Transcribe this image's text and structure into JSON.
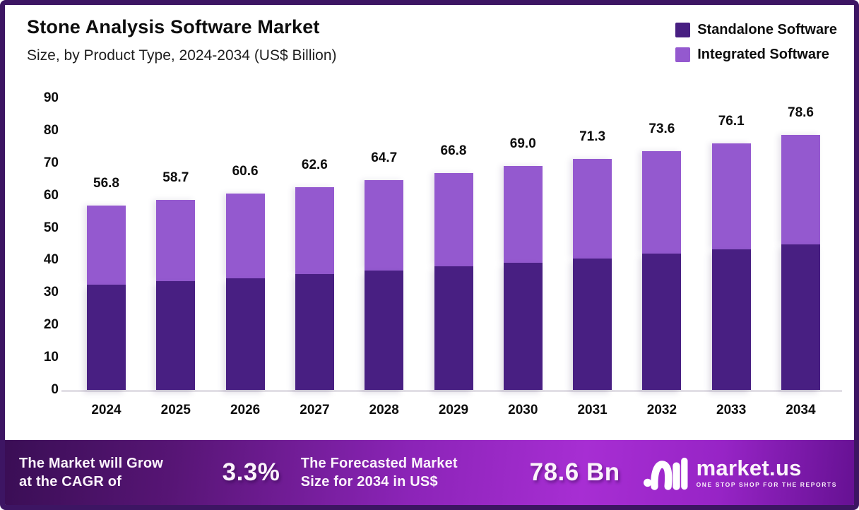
{
  "header": {
    "title": "Stone Analysis Software Market",
    "subtitle": "Size, by Product Type, 2024-2034 (US$ Billion)"
  },
  "legend": [
    {
      "label": "Standalone Software",
      "color": "#481F82"
    },
    {
      "label": "Integrated Software",
      "color": "#9459CF"
    }
  ],
  "chart_data": {
    "type": "bar",
    "stacked": true,
    "title": "Stone Analysis Software Market Size, by Product Type, 2024-2034 (US$ Billion)",
    "categories": [
      "2024",
      "2025",
      "2026",
      "2027",
      "2028",
      "2029",
      "2030",
      "2031",
      "2032",
      "2033",
      "2034"
    ],
    "series": [
      {
        "name": "Standalone Software",
        "color": "#481F82",
        "values": [
          32.4,
          33.5,
          34.5,
          35.7,
          36.9,
          38.1,
          39.3,
          40.6,
          42.0,
          43.4,
          44.8
        ]
      },
      {
        "name": "Integrated Software",
        "color": "#9459CF",
        "values": [
          24.4,
          25.2,
          26.1,
          26.9,
          27.8,
          28.7,
          29.7,
          30.7,
          31.6,
          32.7,
          33.8
        ]
      }
    ],
    "totals": [
      56.8,
      58.7,
      60.6,
      62.6,
      64.7,
      66.8,
      69.0,
      71.3,
      73.6,
      76.1,
      78.6
    ],
    "total_labels": [
      "56.8",
      "58.7",
      "60.6",
      "62.6",
      "64.7",
      "66.8",
      "69.0",
      "71.3",
      "73.6",
      "76.1",
      "78.6"
    ],
    "xlabel": "",
    "ylabel": "",
    "ylim": [
      0,
      90
    ],
    "y_ticks": [
      0,
      10,
      20,
      30,
      40,
      50,
      60,
      70,
      80,
      90
    ],
    "grid": false,
    "legend_position": "top-right"
  },
  "banner": {
    "cagr_line1": "The Market will Grow",
    "cagr_line2": "at the CAGR of",
    "cagr_value": "3.3%",
    "forecast_line1": "The Forecasted Market",
    "forecast_line2": "Size for 2034 in US$",
    "forecast_value": "78.6 Bn",
    "logo_name": "market.us",
    "logo_tagline": "ONE STOP SHOP FOR THE REPORTS"
  },
  "colors": {
    "standalone": "#481F82",
    "integrated": "#9459CF",
    "frame_border": "#3D1563",
    "banner_dark": "#3A0E55",
    "banner_bright": "#A72ED3",
    "baseline": "#E2DFE6"
  }
}
